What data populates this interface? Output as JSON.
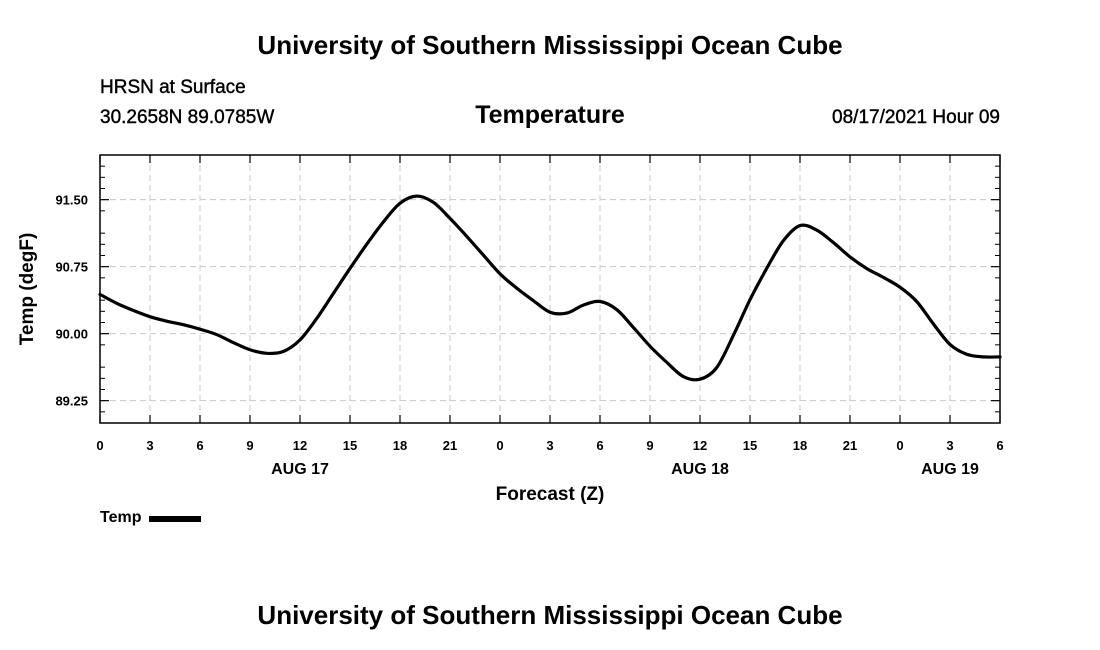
{
  "header": {
    "title": "University of Southern Mississippi Ocean Cube",
    "station": "HRSN at Surface",
    "coordinates": "30.2658N  89.0785W",
    "chart_title": "Temperature",
    "datetime": "08/17/2021 Hour 09"
  },
  "footer": {
    "title": "University of Southern Mississippi Ocean Cube"
  },
  "legend": {
    "label": "Temp",
    "color": "#000000"
  },
  "chart_data": {
    "type": "line",
    "title": "Temperature",
    "xlabel": "Forecast (Z)",
    "ylabel": "Temp (degF)",
    "xlim": [
      0,
      54
    ],
    "ylim": [
      89.0,
      92.0
    ],
    "x_ticks": [
      0,
      3,
      6,
      9,
      12,
      15,
      18,
      21,
      24,
      27,
      30,
      33,
      36,
      39,
      42,
      45,
      48,
      51,
      54
    ],
    "x_tick_labels": [
      "0",
      "3",
      "6",
      "9",
      "12",
      "15",
      "18",
      "21",
      "0",
      "3",
      "6",
      "9",
      "12",
      "15",
      "18",
      "21",
      "0",
      "3",
      "6"
    ],
    "y_ticks": [
      89.25,
      90.0,
      90.75,
      91.5
    ],
    "y_tick_labels": [
      "89.25",
      "90.00",
      "90.75",
      "91.50"
    ],
    "y_minor_ticks": [
      89.0,
      89.125,
      89.375,
      89.5,
      89.625,
      89.875,
      90.125,
      90.25,
      90.375,
      90.625,
      90.875,
      91.0,
      91.125,
      91.375,
      91.625,
      91.75,
      91.875,
      92.0
    ],
    "day_labels": [
      {
        "x": 12,
        "label": "AUG 17"
      },
      {
        "x": 36,
        "label": "AUG 18"
      },
      {
        "x": 51,
        "label": "AUG 19"
      }
    ],
    "grid": true,
    "series": [
      {
        "name": "Temp",
        "color": "#000000",
        "x": [
          0,
          1,
          2,
          3,
          4,
          5,
          6,
          7,
          8,
          9,
          10,
          11,
          12,
          13,
          14,
          15,
          16,
          17,
          18,
          19,
          20,
          21,
          22,
          23,
          24,
          25,
          26,
          27,
          28,
          29,
          30,
          31,
          32,
          33,
          34,
          35,
          36,
          37,
          38,
          39,
          40,
          41,
          42,
          43,
          44,
          45,
          46,
          47,
          48,
          49,
          50,
          51,
          52,
          53,
          54
        ],
        "values": [
          90.44,
          90.34,
          90.26,
          90.19,
          90.14,
          90.1,
          90.05,
          89.99,
          89.9,
          89.82,
          89.78,
          89.8,
          89.93,
          90.17,
          90.45,
          90.73,
          91.0,
          91.25,
          91.46,
          91.54,
          91.47,
          91.29,
          91.09,
          90.88,
          90.67,
          90.51,
          90.37,
          90.24,
          90.23,
          90.32,
          90.36,
          90.27,
          90.07,
          89.86,
          89.68,
          89.52,
          89.49,
          89.62,
          89.98,
          90.38,
          90.73,
          91.04,
          91.21,
          91.16,
          91.02,
          90.86,
          90.73,
          90.63,
          90.52,
          90.36,
          90.11,
          89.88,
          89.77,
          89.74,
          89.74
        ]
      }
    ]
  }
}
